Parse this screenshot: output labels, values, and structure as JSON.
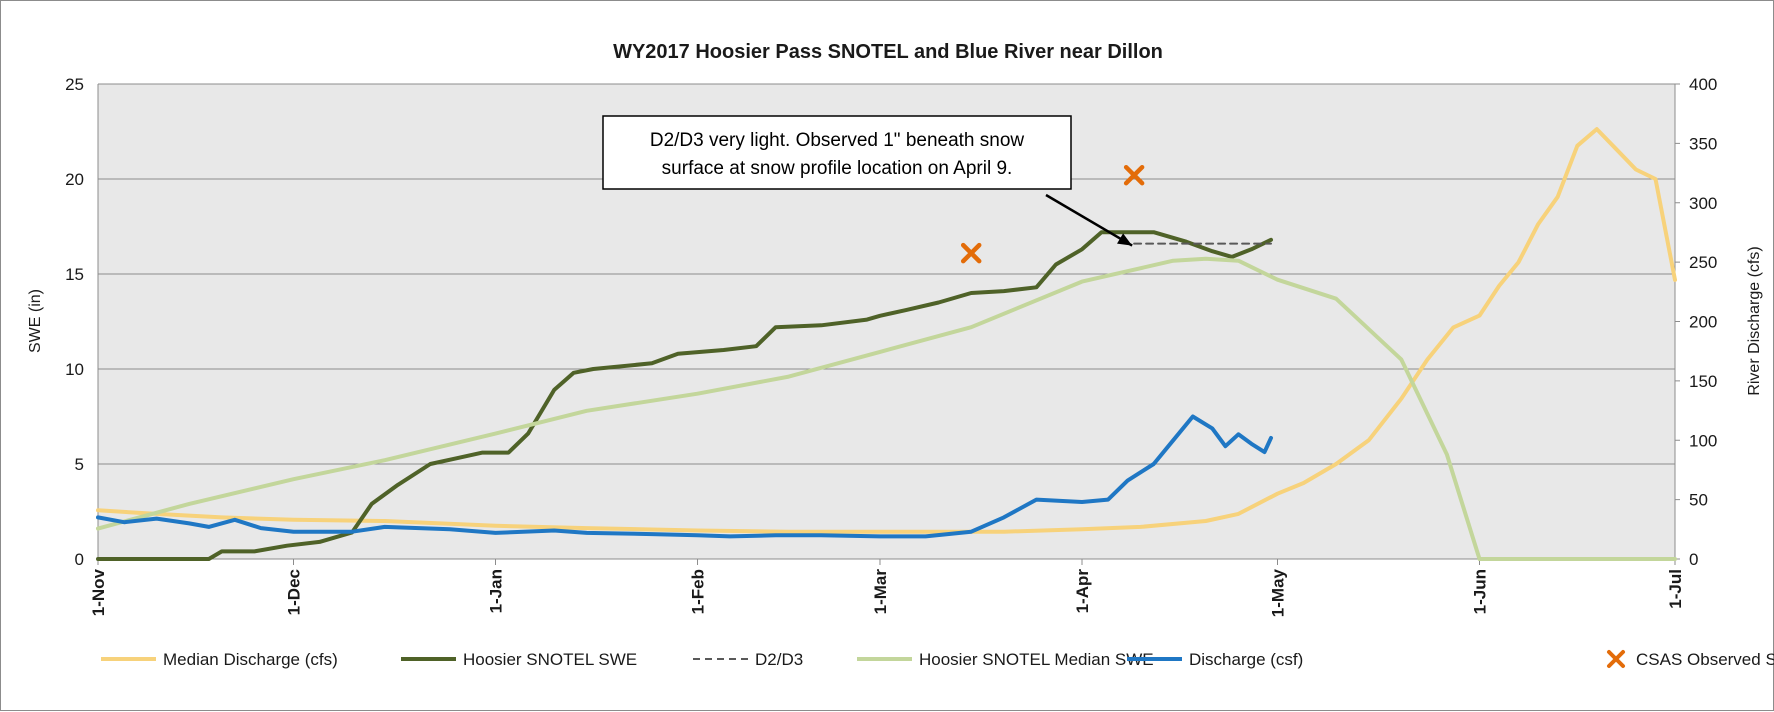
{
  "chart_data": {
    "type": "line",
    "title": "WY2017 Hoosier Pass SNOTEL and Blue River near Dillon",
    "ylabel": "SWE (in)",
    "y2label": "River Discharge (cfs)",
    "ylim": [
      0,
      25
    ],
    "y2lim": [
      0,
      400
    ],
    "yticks": [
      "0",
      "5",
      "10",
      "15",
      "20",
      "25"
    ],
    "y2ticks": [
      "0",
      "50",
      "100",
      "150",
      "200",
      "250",
      "300",
      "350",
      "400"
    ],
    "xticks": [
      {
        "label": "1-Nov",
        "date": "2016-11-01"
      },
      {
        "label": "1-Dec",
        "date": "2016-12-01"
      },
      {
        "label": "1-Jan",
        "date": "2017-01-01"
      },
      {
        "label": "1-Feb",
        "date": "2017-02-01"
      },
      {
        "label": "1-Mar",
        "date": "2017-03-01"
      },
      {
        "label": "1-Apr",
        "date": "2017-04-01"
      },
      {
        "label": "1-May",
        "date": "2017-05-01"
      },
      {
        "label": "1-Jun",
        "date": "2017-06-01"
      },
      {
        "label": "1-Jul",
        "date": "2017-07-01"
      }
    ],
    "xlim": [
      "2016-11-01",
      "2017-07-01"
    ],
    "grid": true,
    "legend_position": "bottom",
    "annotation": {
      "lines": [
        "D2/D3 very light.  Observed 1\" beneath snow",
        "surface at snow profile location on April 9."
      ],
      "arrow_to": {
        "date": "2017-04-09",
        "y": 16.6
      }
    },
    "series": [
      {
        "name": "Median Discharge (cfs)",
        "axis": "right",
        "color": "#f7d27b",
        "style": "solid",
        "points": [
          [
            "2016-11-01",
            41
          ],
          [
            "2016-11-10",
            38
          ],
          [
            "2016-11-20",
            35
          ],
          [
            "2016-12-01",
            33
          ],
          [
            "2016-12-15",
            32
          ],
          [
            "2017-01-01",
            28
          ],
          [
            "2017-01-15",
            26
          ],
          [
            "2017-02-01",
            24
          ],
          [
            "2017-02-15",
            23
          ],
          [
            "2017-03-01",
            23
          ],
          [
            "2017-03-20",
            23
          ],
          [
            "2017-04-01",
            25
          ],
          [
            "2017-04-10",
            27
          ],
          [
            "2017-04-20",
            32
          ],
          [
            "2017-04-25",
            38
          ],
          [
            "2017-05-01",
            55
          ],
          [
            "2017-05-05",
            64
          ],
          [
            "2017-05-10",
            80
          ],
          [
            "2017-05-15",
            100
          ],
          [
            "2017-05-20",
            135
          ],
          [
            "2017-05-24",
            168
          ],
          [
            "2017-05-28",
            195
          ],
          [
            "2017-06-01",
            205
          ],
          [
            "2017-06-04",
            230
          ],
          [
            "2017-06-07",
            250
          ],
          [
            "2017-06-10",
            282
          ],
          [
            "2017-06-13",
            305
          ],
          [
            "2017-06-16",
            348
          ],
          [
            "2017-06-19",
            362
          ],
          [
            "2017-06-22",
            345
          ],
          [
            "2017-06-25",
            328
          ],
          [
            "2017-06-28",
            320
          ],
          [
            "2017-07-01",
            235
          ]
        ]
      },
      {
        "name": "Hoosier SNOTEL SWE",
        "axis": "left",
        "color": "#4f6228",
        "style": "solid",
        "points": [
          [
            "2016-11-01",
            0
          ],
          [
            "2016-11-18",
            0
          ],
          [
            "2016-11-20",
            0.4
          ],
          [
            "2016-11-25",
            0.4
          ],
          [
            "2016-11-30",
            0.7
          ],
          [
            "2016-12-05",
            0.9
          ],
          [
            "2016-12-10",
            1.4
          ],
          [
            "2016-12-13",
            2.9
          ],
          [
            "2016-12-17",
            3.9
          ],
          [
            "2016-12-22",
            5.0
          ],
          [
            "2016-12-26",
            5.3
          ],
          [
            "2016-12-30",
            5.6
          ],
          [
            "2017-01-03",
            5.6
          ],
          [
            "2017-01-06",
            6.6
          ],
          [
            "2017-01-10",
            8.9
          ],
          [
            "2017-01-13",
            9.8
          ],
          [
            "2017-01-16",
            10.0
          ],
          [
            "2017-01-25",
            10.3
          ],
          [
            "2017-01-29",
            10.8
          ],
          [
            "2017-02-05",
            11.0
          ],
          [
            "2017-02-10",
            11.2
          ],
          [
            "2017-02-13",
            12.2
          ],
          [
            "2017-02-20",
            12.3
          ],
          [
            "2017-02-27",
            12.6
          ],
          [
            "2017-03-01",
            12.8
          ],
          [
            "2017-03-05",
            13.1
          ],
          [
            "2017-03-10",
            13.5
          ],
          [
            "2017-03-15",
            14.0
          ],
          [
            "2017-03-20",
            14.1
          ],
          [
            "2017-03-25",
            14.3
          ],
          [
            "2017-03-28",
            15.5
          ],
          [
            "2017-04-01",
            16.3
          ],
          [
            "2017-04-04",
            17.2
          ],
          [
            "2017-04-12",
            17.2
          ],
          [
            "2017-04-17",
            16.7
          ],
          [
            "2017-04-21",
            16.2
          ],
          [
            "2017-04-24",
            15.9
          ],
          [
            "2017-04-27",
            16.3
          ],
          [
            "2017-04-30",
            16.8
          ]
        ]
      },
      {
        "name": "D2/D3",
        "axis": "left",
        "color": "#595959",
        "style": "dashed",
        "points": [
          [
            "2017-04-09",
            16.6
          ],
          [
            "2017-04-30",
            16.6
          ]
        ]
      },
      {
        "name": "Hoosier SNOTEL Median SWE",
        "axis": "left",
        "color": "#c3d69b",
        "style": "solid",
        "points": [
          [
            "2016-11-01",
            1.6
          ],
          [
            "2016-11-15",
            2.9
          ],
          [
            "2016-12-01",
            4.2
          ],
          [
            "2016-12-15",
            5.2
          ],
          [
            "2017-01-01",
            6.6
          ],
          [
            "2017-01-15",
            7.8
          ],
          [
            "2017-02-01",
            8.7
          ],
          [
            "2017-02-15",
            9.6
          ],
          [
            "2017-03-01",
            10.9
          ],
          [
            "2017-03-15",
            12.2
          ],
          [
            "2017-04-01",
            14.6
          ],
          [
            "2017-04-15",
            15.7
          ],
          [
            "2017-04-20",
            15.8
          ],
          [
            "2017-04-25",
            15.7
          ],
          [
            "2017-05-01",
            14.7
          ],
          [
            "2017-05-10",
            13.7
          ],
          [
            "2017-05-20",
            10.5
          ],
          [
            "2017-05-27",
            5.5
          ],
          [
            "2017-06-01",
            0
          ],
          [
            "2017-07-01",
            0
          ]
        ]
      },
      {
        "name": "Discharge (csf)",
        "axis": "right",
        "color": "#1f77c4",
        "style": "solid",
        "points": [
          [
            "2016-11-01",
            35
          ],
          [
            "2016-11-05",
            31
          ],
          [
            "2016-11-10",
            34
          ],
          [
            "2016-11-15",
            30
          ],
          [
            "2016-11-18",
            27
          ],
          [
            "2016-11-22",
            33
          ],
          [
            "2016-11-26",
            26
          ],
          [
            "2016-12-01",
            23
          ],
          [
            "2016-12-10",
            23
          ],
          [
            "2016-12-15",
            27
          ],
          [
            "2016-12-25",
            25
          ],
          [
            "2017-01-01",
            22
          ],
          [
            "2017-01-10",
            24
          ],
          [
            "2017-01-15",
            22
          ],
          [
            "2017-01-25",
            21
          ],
          [
            "2017-02-01",
            20
          ],
          [
            "2017-02-06",
            19
          ],
          [
            "2017-02-13",
            20
          ],
          [
            "2017-02-20",
            20
          ],
          [
            "2017-03-01",
            19
          ],
          [
            "2017-03-08",
            19
          ],
          [
            "2017-03-15",
            23
          ],
          [
            "2017-03-20",
            35
          ],
          [
            "2017-03-25",
            50
          ],
          [
            "2017-04-01",
            48
          ],
          [
            "2017-04-05",
            50
          ],
          [
            "2017-04-08",
            66
          ],
          [
            "2017-04-12",
            80
          ],
          [
            "2017-04-15",
            100
          ],
          [
            "2017-04-18",
            120
          ],
          [
            "2017-04-21",
            110
          ],
          [
            "2017-04-23",
            95
          ],
          [
            "2017-04-25",
            105
          ],
          [
            "2017-04-27",
            97
          ],
          [
            "2017-04-29",
            90
          ],
          [
            "2017-04-30",
            102
          ]
        ]
      },
      {
        "name": "CSAS Observed SWE",
        "axis": "left",
        "color": "#e36c09",
        "style": "marker",
        "points": [
          [
            "2017-03-15",
            16.1
          ],
          [
            "2017-04-09",
            20.2
          ]
        ]
      }
    ]
  }
}
